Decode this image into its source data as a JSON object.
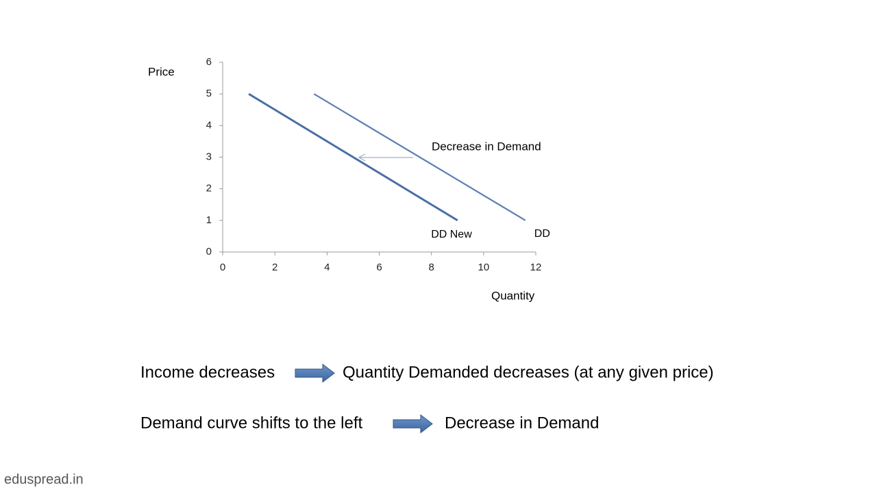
{
  "chart_data": {
    "type": "line",
    "xlabel": "Quantity",
    "ylabel": "Price",
    "xlim": [
      0,
      12
    ],
    "xticks": [
      0,
      2,
      4,
      6,
      8,
      10,
      12
    ],
    "ylim": [
      0,
      6
    ],
    "yticks": [
      0,
      1,
      2,
      3,
      4,
      5,
      6
    ],
    "series": [
      {
        "name": "DD New",
        "color": "#4a6fa5",
        "x": [
          1,
          9
        ],
        "values": [
          5,
          1
        ]
      },
      {
        "name": "DD",
        "color": "#5b7fb5",
        "x": [
          3.5,
          11.6
        ],
        "values": [
          5,
          1
        ]
      }
    ],
    "annotation": "Decrease in Demand"
  },
  "statements": [
    {
      "cause": "Income decreases",
      "effect": "Quantity Demanded decreases (at any given price)"
    },
    {
      "cause": "Demand curve shifts to the left",
      "effect": "Decrease in Demand"
    }
  ],
  "watermark": "eduspread.in"
}
